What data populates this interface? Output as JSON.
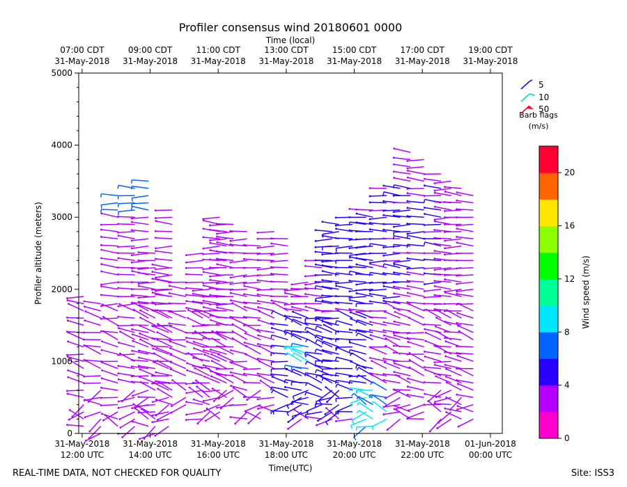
{
  "chart_data": {
    "type": "wind-barb-profile",
    "title": "Profiler consensus wind 20180601 0000",
    "top_axis_label": "Time (local)",
    "top_ticks": [
      {
        "time": "07:00 CDT",
        "date": "31-May-2018",
        "utc_hour": 12
      },
      {
        "time": "09:00 CDT",
        "date": "31-May-2018",
        "utc_hour": 14
      },
      {
        "time": "11:00 CDT",
        "date": "31-May-2018",
        "utc_hour": 16
      },
      {
        "time": "13:00 CDT",
        "date": "31-May-2018",
        "utc_hour": 18
      },
      {
        "time": "15:00 CDT",
        "date": "31-May-2018",
        "utc_hour": 20
      },
      {
        "time": "17:00 CDT",
        "date": "31-May-2018",
        "utc_hour": 22
      },
      {
        "time": "19:00 CDT",
        "date": "31-May-2018",
        "utc_hour": 24
      }
    ],
    "bottom_axis_label": "Time(UTC)",
    "bottom_ticks": [
      {
        "date": "31-May-2018",
        "time": "12:00 UTC",
        "utc_hour": 12
      },
      {
        "date": "31-May-2018",
        "time": "14:00 UTC",
        "utc_hour": 14
      },
      {
        "date": "31-May-2018",
        "time": "16:00 UTC",
        "utc_hour": 16
      },
      {
        "date": "31-May-2018",
        "time": "18:00 UTC",
        "utc_hour": 18
      },
      {
        "date": "31-May-2018",
        "time": "20:00 UTC",
        "utc_hour": 20
      },
      {
        "date": "31-May-2018",
        "time": "22:00 UTC",
        "utc_hour": 22
      },
      {
        "date": "01-Jun-2018",
        "time": "00:00 UTC",
        "utc_hour": 24
      }
    ],
    "xlim_utc_hours": [
      11.9,
      24.35
    ],
    "ylabel": "Profiler altitude (meters)",
    "ylim": [
      0,
      5000
    ],
    "y_ticks": [
      "0",
      "1000",
      "2000",
      "3000",
      "4000",
      "5000"
    ],
    "y_tick_values": [
      0,
      1000,
      2000,
      3000,
      4000,
      5000
    ],
    "y_minor_step": 200,
    "colorbar": {
      "label": "Wind speed (m/s)",
      "min": 0,
      "max": 22,
      "step": 2,
      "tick_labels": [
        "0",
        "4",
        "8",
        "12",
        "16",
        "20"
      ],
      "tick_values": [
        0,
        4,
        8,
        12,
        16,
        20
      ],
      "colors": [
        "#ff00cc",
        "#b400ff",
        "#2800ff",
        "#0064ff",
        "#00e6ff",
        "#00ff96",
        "#00ff00",
        "#8cff00",
        "#ffe600",
        "#ff6400",
        "#ff0032"
      ]
    },
    "barb_legend": {
      "entries": [
        {
          "label": "5",
          "color": "#2800ff"
        },
        {
          "label": "10",
          "color": "#00e6a0"
        },
        {
          "label": "50",
          "color": "#ff0032"
        }
      ],
      "title_line1": "Barb flags",
      "title_line2": "(m/s)"
    },
    "profiles": [
      {
        "t": 12.05,
        "bottom": 100,
        "top": 1900
      },
      {
        "t": 12.55,
        "bottom": 0,
        "top": 1800
      },
      {
        "t": 13.05,
        "bottom": 100,
        "top": 3300
      },
      {
        "t": 13.55,
        "bottom": 0,
        "top": 3400
      },
      {
        "t": 13.95,
        "bottom": 100,
        "top": 3500
      },
      {
        "t": 14.15,
        "bottom": 0,
        "top": 2500
      },
      {
        "t": 14.55,
        "bottom": 100,
        "top": 2300
      },
      {
        "t": 14.65,
        "bottom": 300,
        "top": 3100
      },
      {
        "t": 15.05,
        "bottom": 400,
        "top": 2100
      },
      {
        "t": 15.55,
        "bottom": 200,
        "top": 2500
      },
      {
        "t": 15.75,
        "bottom": 300,
        "top": 2000
      },
      {
        "t": 16.05,
        "bottom": 200,
        "top": 3000
      },
      {
        "t": 16.25,
        "bottom": 500,
        "top": 2900
      },
      {
        "t": 16.45,
        "bottom": 400,
        "top": 2900
      },
      {
        "t": 16.85,
        "bottom": 200,
        "top": 2800
      },
      {
        "t": 17.25,
        "bottom": 200,
        "top": 2600
      },
      {
        "t": 17.65,
        "bottom": 300,
        "top": 2800
      },
      {
        "t": 18.05,
        "bottom": 300,
        "top": 2700
      },
      {
        "t": 18.45,
        "bottom": 200,
        "top": 2000
      },
      {
        "t": 18.65,
        "bottom": 200,
        "top": 2100
      },
      {
        "t": 19.05,
        "bottom": 200,
        "top": 2400
      },
      {
        "t": 19.35,
        "bottom": 200,
        "top": 2800
      },
      {
        "t": 19.55,
        "bottom": 200,
        "top": 2900
      },
      {
        "t": 19.95,
        "bottom": 200,
        "top": 3000
      },
      {
        "t": 20.35,
        "bottom": 100,
        "top": 3100
      },
      {
        "t": 20.55,
        "bottom": 100,
        "top": 3100
      },
      {
        "t": 20.95,
        "bottom": 200,
        "top": 3450
      },
      {
        "t": 21.35,
        "bottom": 200,
        "top": 3450
      },
      {
        "t": 21.65,
        "bottom": 200,
        "top": 3900
      },
      {
        "t": 22.05,
        "bottom": 200,
        "top": 3850
      },
      {
        "t": 22.55,
        "bottom": 200,
        "top": 3600
      },
      {
        "t": 22.85,
        "bottom": 200,
        "top": 3500
      },
      {
        "t": 23.15,
        "bottom": 200,
        "top": 3450
      },
      {
        "t": 23.5,
        "bottom": 200,
        "top": 3350
      }
    ]
  },
  "footer": {
    "left": "REAL-TIME DATA, NOT CHECKED FOR QUALITY",
    "right": "Site: ISS3"
  }
}
